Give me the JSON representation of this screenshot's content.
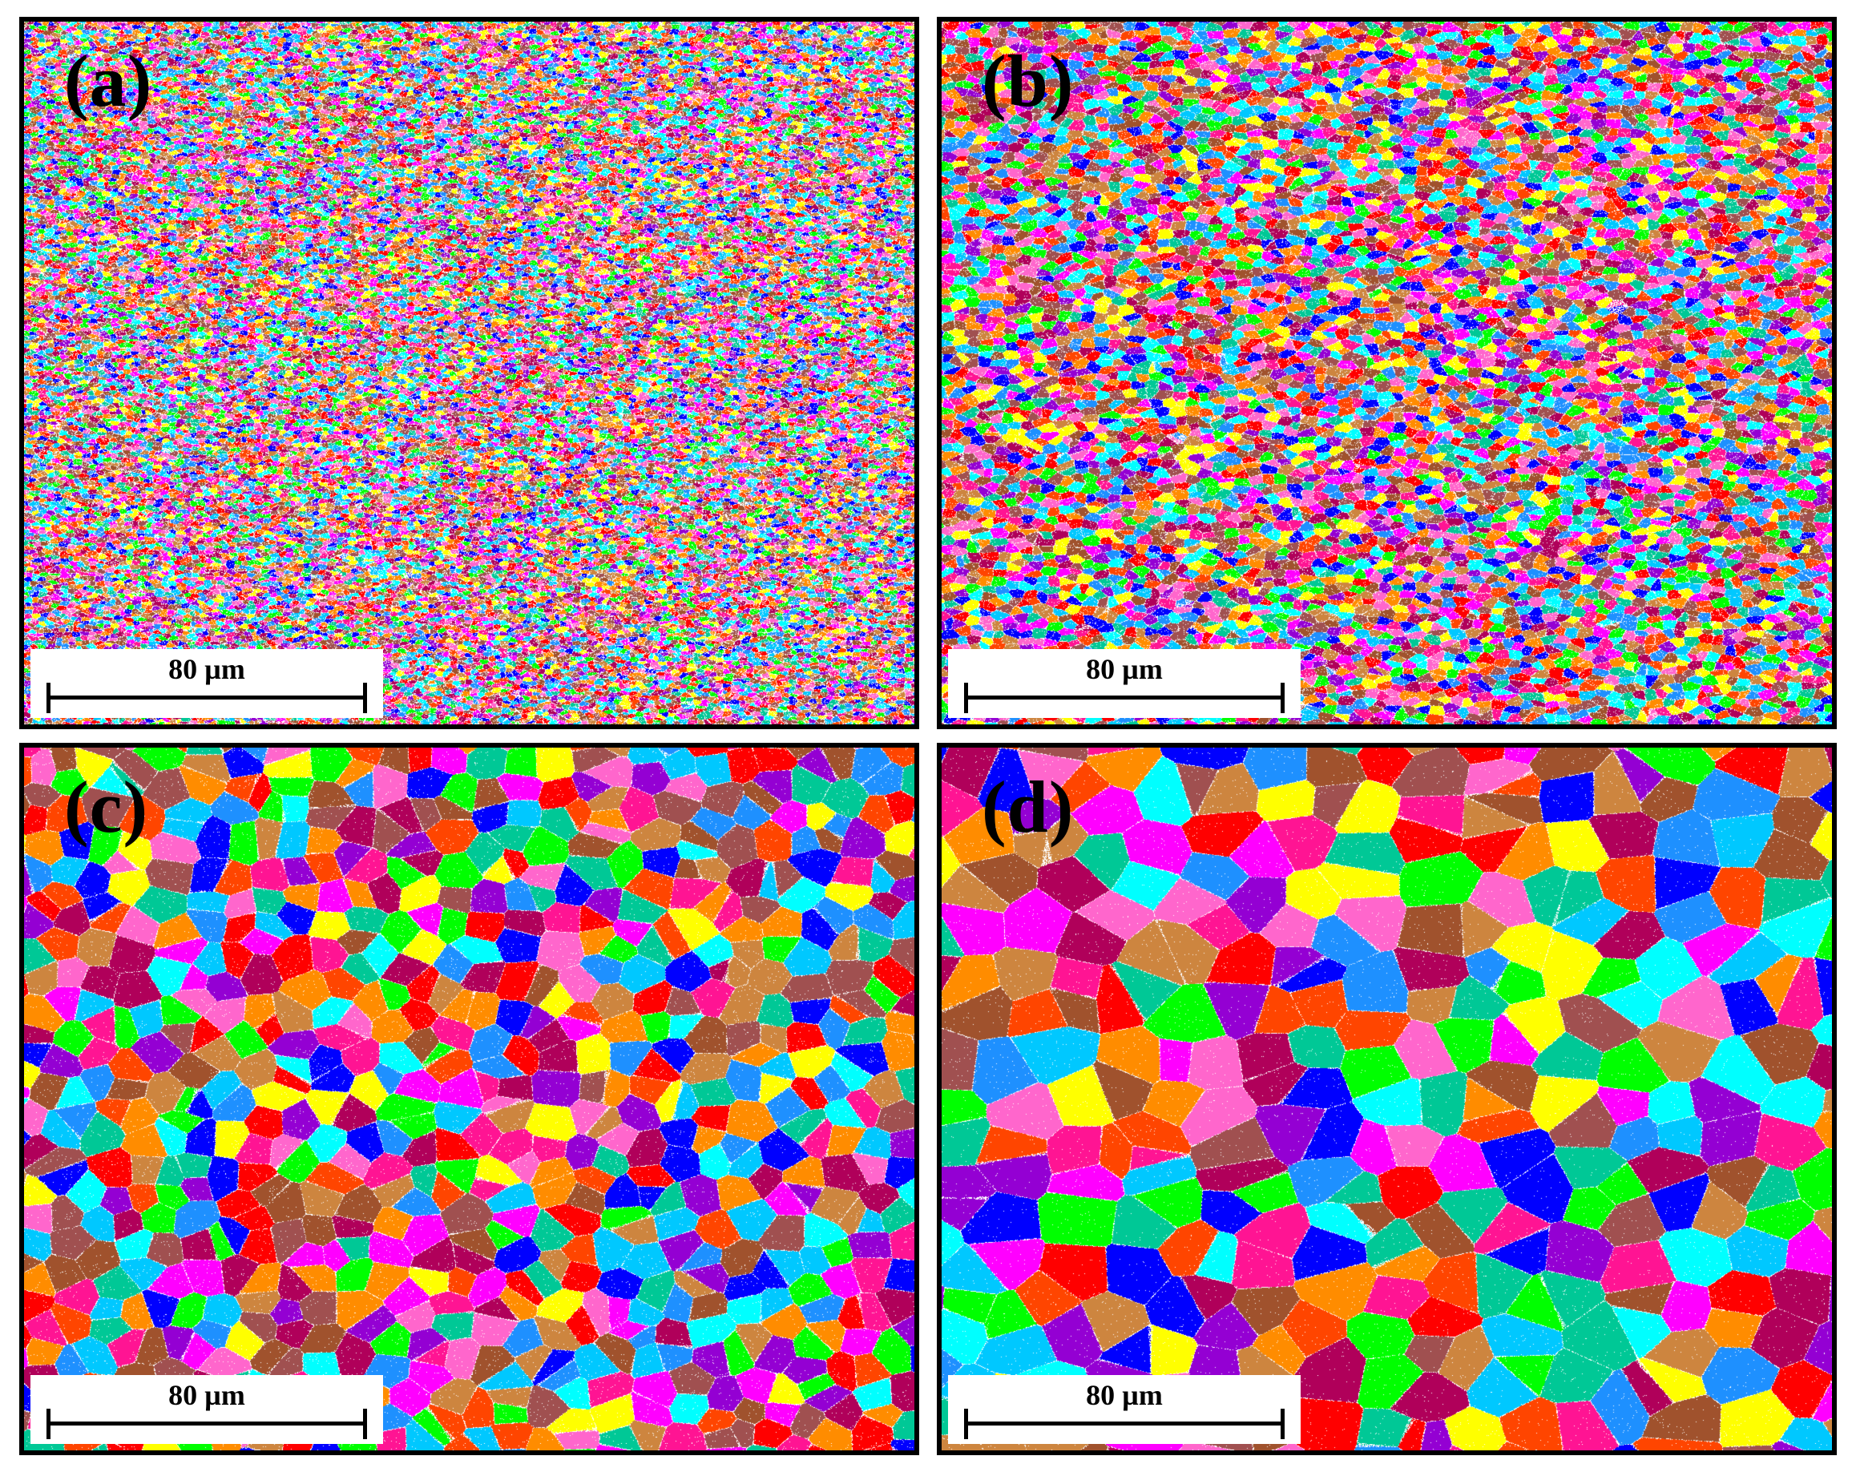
{
  "figure": {
    "panels": [
      {
        "id": "a",
        "label": "(a)",
        "scale_text": "80 µm",
        "grain_size": "very-fine"
      },
      {
        "id": "b",
        "label": "(b)",
        "scale_text": "80 µm",
        "grain_size": "fine"
      },
      {
        "id": "c",
        "label": "(c)",
        "scale_text": "80 µm",
        "grain_size": "medium"
      },
      {
        "id": "d",
        "label": "(d)",
        "scale_text": "80 µm",
        "grain_size": "coarse"
      }
    ],
    "grain_colors": [
      "#ff0000",
      "#ff00ff",
      "#ff1493",
      "#0000ff",
      "#00ffff",
      "#00ff00",
      "#ffff00",
      "#ff8c00",
      "#a0522d",
      "#cd853f",
      "#b0005a",
      "#9400d3",
      "#1e90ff",
      "#00c896",
      "#ff4500",
      "#a05050",
      "#00c8ff",
      "#ff66cc"
    ],
    "boundary_color": "#ffffff",
    "frame_color": "#000000"
  }
}
